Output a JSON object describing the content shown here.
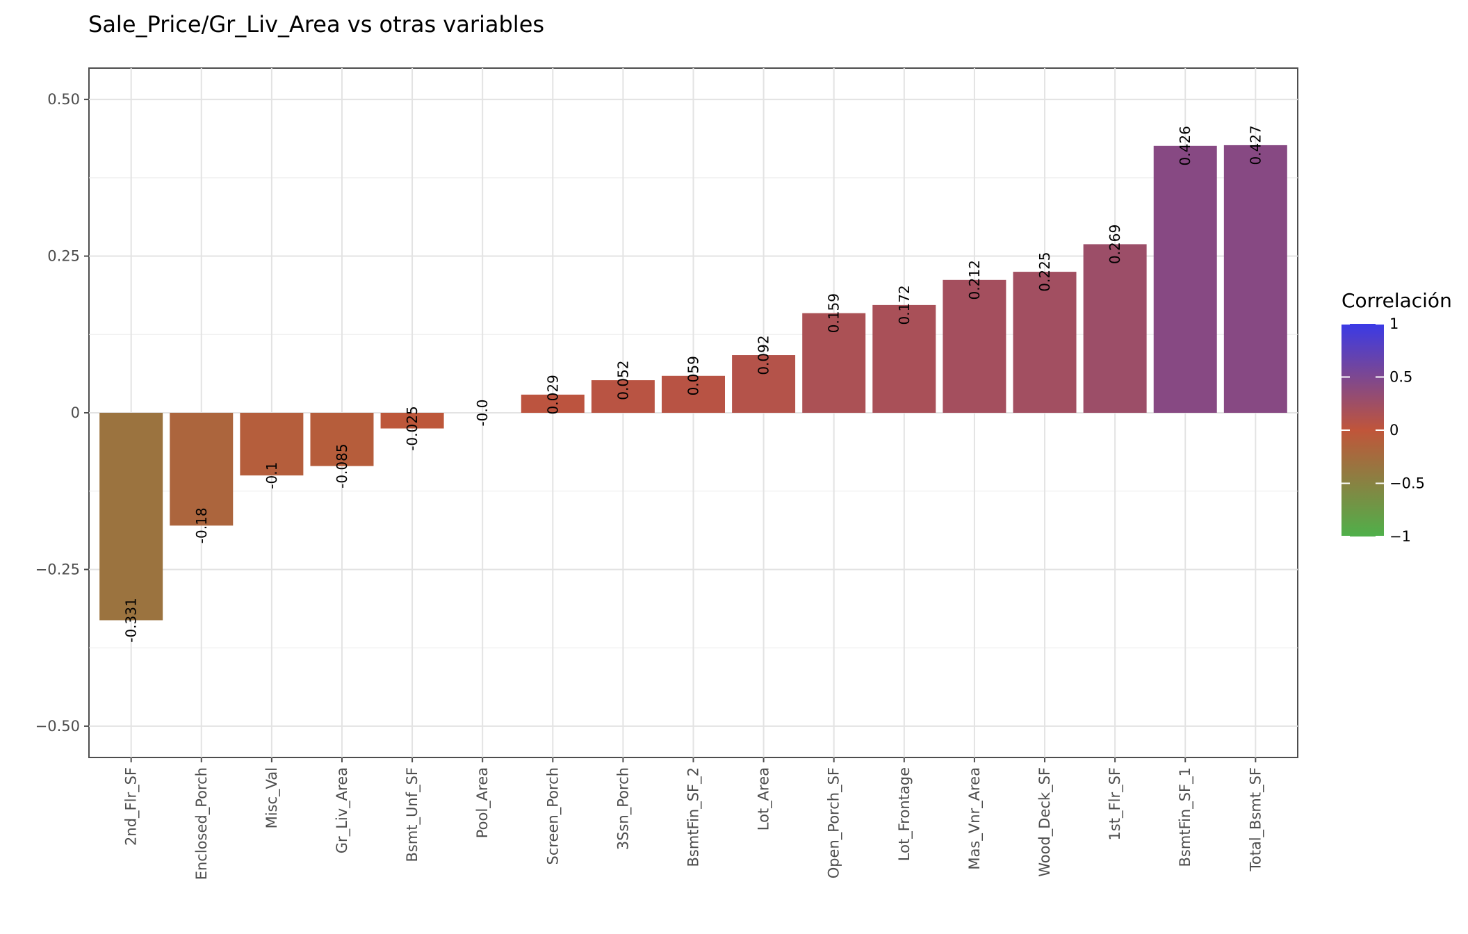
{
  "chart_data": {
    "type": "bar",
    "title": "Sale_Price/Gr_Liv_Area vs otras variables",
    "xlabel": "",
    "ylabel": "",
    "ylim": [
      -0.55,
      0.55
    ],
    "yticks": [
      0.5,
      0.25,
      0,
      -0.25,
      -0.5
    ],
    "ytick_labels": [
      "0.50",
      "0.25",
      "0",
      "−0.25",
      "−0.50"
    ],
    "grid": true,
    "categories": [
      "2nd_Flr_SF",
      "Enclosed_Porch",
      "Misc_Val",
      "Gr_Liv_Area",
      "Bsmt_Unf_SF",
      "Pool_Area",
      "Screen_Porch",
      "3Ssn_Porch",
      "BsmtFin_SF_2",
      "Lot_Area",
      "Open_Porch_SF",
      "Lot_Frontage",
      "Mas_Vnr_Area",
      "Wood_Deck_SF",
      "1st_Flr_SF",
      "BsmtFin_SF_1",
      "Total_Bsmt_SF"
    ],
    "values": [
      -0.331,
      -0.18,
      -0.1,
      -0.085,
      -0.025,
      -0.0,
      0.029,
      0.052,
      0.059,
      0.092,
      0.159,
      0.172,
      0.212,
      0.225,
      0.269,
      0.426,
      0.427
    ],
    "value_labels": [
      "-0.331",
      "-0.18",
      "-0.1",
      "-0.085",
      "-0.025",
      "-0.0",
      "0.029",
      "0.052",
      "0.059",
      "0.092",
      "0.159",
      "0.172",
      "0.212",
      "0.225",
      "0.269",
      "0.426",
      "0.427"
    ],
    "legend": {
      "title": "Correlación",
      "position": "right",
      "ticks": [
        1,
        0.5,
        0,
        -0.5,
        -1
      ],
      "tick_labels": [
        "1",
        "0.5",
        "0",
        "−0.5",
        "−1"
      ],
      "colors": {
        "high": "#3a3ae6",
        "mid": "#c0553a",
        "low": "#4fb04a"
      }
    }
  }
}
